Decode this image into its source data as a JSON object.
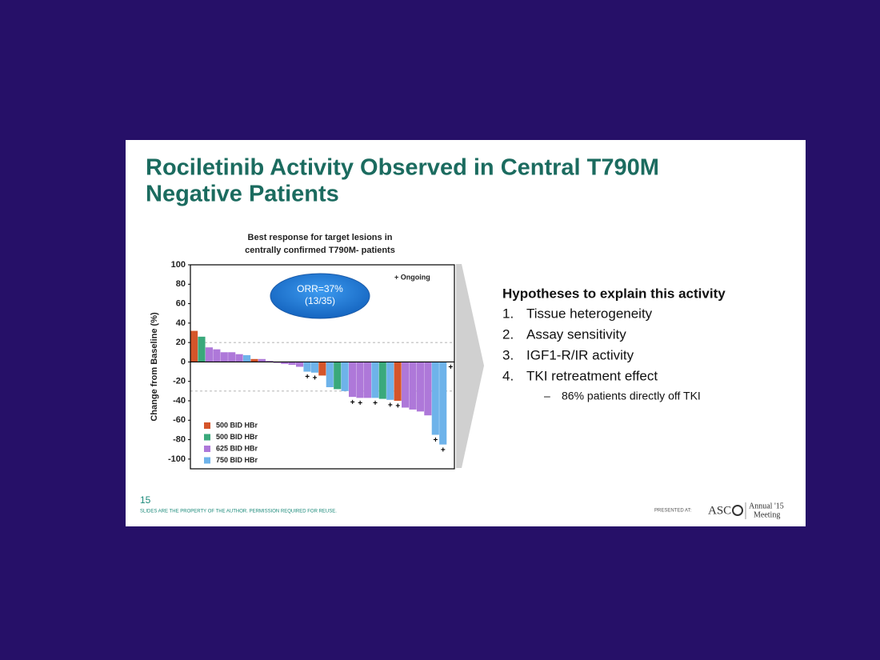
{
  "slide": {
    "title": [
      "Rociletinib Activity Observed in Central T790M",
      "Negative Patients"
    ],
    "page_number": "15",
    "footer": "SLIDES ARE THE PROPERTY OF THE AUTHOR. PERMISSION REQUIRED FOR REUSE.",
    "presented_at": "PRESENTED AT:",
    "logo": {
      "name": "ASC",
      "annual": "Annual '15",
      "meeting": "Meeting"
    },
    "hypotheses": {
      "heading": "Hypotheses to explain this activity",
      "items": [
        {
          "number": "1.",
          "text": "Tissue heterogeneity"
        },
        {
          "number": "2.",
          "text": "Assay sensitivity"
        },
        {
          "number": "3.",
          "text": "IGF1-R/IR activity"
        },
        {
          "number": "4.",
          "text": "TKI retreatment effect"
        }
      ],
      "sub_item": "86% patients directly off TKI"
    }
  },
  "chart_data": {
    "type": "bar",
    "title": [
      "Best response  for target lesions in",
      "centrally confirmed T790M- patients"
    ],
    "y_label": "Change from Baseline (%)",
    "annotation": [
      "ORR=37%",
      "(13/35)"
    ],
    "marker_legend": "+ Ongoing",
    "categories": [
      null,
      null,
      null,
      null,
      null,
      null,
      null,
      null,
      null,
      null,
      null,
      null,
      null,
      null,
      null,
      null,
      null,
      null,
      null,
      null,
      null,
      null,
      null,
      null,
      null,
      null,
      null,
      null,
      null,
      null,
      null,
      null,
      null,
      null,
      null
    ],
    "markers": [
      null,
      null,
      null,
      null,
      null,
      null,
      null,
      null,
      null,
      null,
      null,
      null,
      null,
      null,
      null,
      "+",
      "+",
      null,
      null,
      null,
      null,
      "+",
      "+",
      null,
      "+",
      null,
      "+",
      "+",
      null,
      null,
      null,
      null,
      "+",
      "+",
      "+"
    ],
    "series": [
      {
        "name": "500 BID HBr",
        "color": "#d5552a",
        "values": [
          32,
          null,
          null,
          null,
          null,
          null,
          null,
          null,
          3,
          null,
          null,
          null,
          null,
          null,
          null,
          null,
          null,
          -14,
          null,
          null,
          null,
          null,
          null,
          null,
          null,
          null,
          null,
          -40,
          null,
          null,
          null,
          null,
          null,
          null,
          null
        ]
      },
      {
        "name": "500 BID HBr",
        "color": "#3aa97b",
        "values": [
          null,
          26,
          null,
          null,
          null,
          null,
          null,
          null,
          null,
          null,
          null,
          null,
          null,
          null,
          null,
          null,
          null,
          null,
          null,
          -28,
          null,
          null,
          null,
          null,
          null,
          -38,
          null,
          null,
          null,
          null,
          null,
          null,
          null,
          null,
          null
        ]
      },
      {
        "name": "625 BID HBr",
        "color": "#ae78d9",
        "values": [
          null,
          null,
          15,
          13,
          10,
          10,
          8,
          null,
          null,
          3,
          1,
          -1,
          -2,
          -3,
          -5,
          null,
          null,
          null,
          null,
          null,
          null,
          -36,
          -37,
          -37,
          null,
          null,
          null,
          null,
          -47,
          -49,
          -51,
          -55,
          null,
          null,
          null
        ]
      },
      {
        "name": "750 BID HBr",
        "color": "#6eb3ea",
        "values": [
          null,
          null,
          null,
          null,
          null,
          null,
          null,
          7,
          null,
          null,
          null,
          null,
          null,
          null,
          null,
          -10,
          -11,
          null,
          -26,
          null,
          -30,
          null,
          null,
          null,
          -37,
          null,
          -39,
          null,
          null,
          null,
          null,
          null,
          -75,
          -85,
          null
        ]
      }
    ],
    "extra_series_note": null,
    "ylim": [
      -110,
      100
    ],
    "yticks": [
      -100,
      -80,
      -60,
      -40,
      -20,
      0,
      20,
      40,
      60,
      80,
      100
    ],
    "reference_lines": [
      20,
      -30
    ]
  }
}
